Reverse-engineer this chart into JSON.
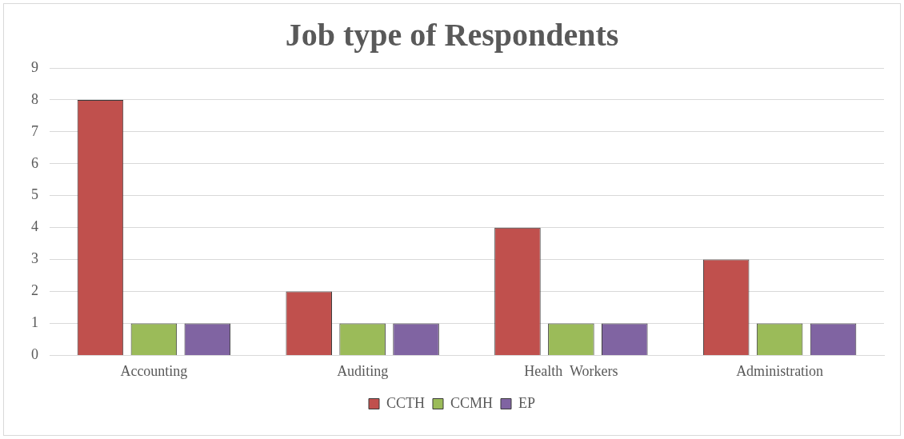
{
  "chart_data": {
    "type": "bar",
    "title": "Job type of Respondents",
    "categories": [
      "Accounting",
      "Auditing",
      "Health  Workers",
      "Administration"
    ],
    "series": [
      {
        "name": "CCTH",
        "color": "#c0504d",
        "values": [
          8,
          2,
          4,
          3
        ]
      },
      {
        "name": "CCMH",
        "color": "#9bbb59",
        "values": [
          1,
          1,
          1,
          1
        ]
      },
      {
        "name": "EP",
        "color": "#8064a2",
        "values": [
          1,
          1,
          1,
          1
        ]
      }
    ],
    "ylim": [
      0,
      9
    ],
    "yticks": [
      0,
      1,
      2,
      3,
      4,
      5,
      6,
      7,
      8,
      9
    ],
    "grid": "y",
    "legend": "bottom"
  }
}
